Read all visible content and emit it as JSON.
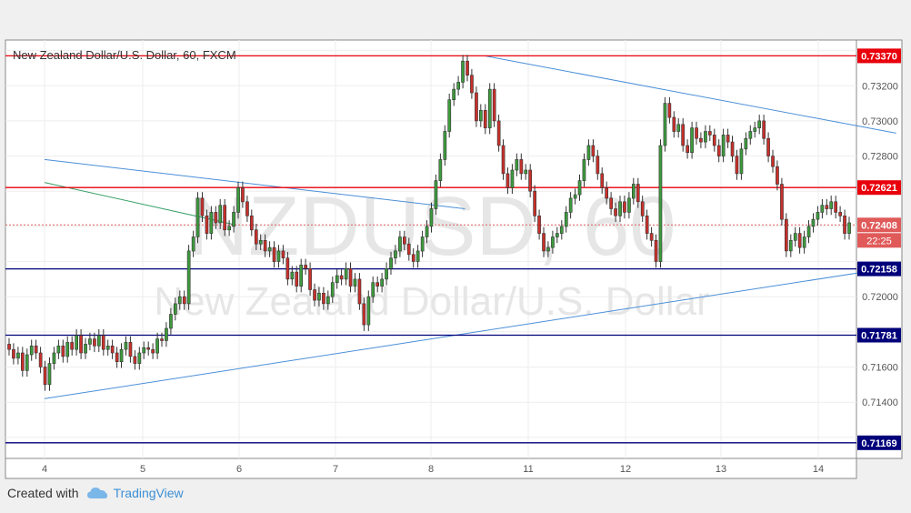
{
  "chart_data": {
    "type": "candlestick",
    "title": "New Zealand Dollar/U.S. Dollar, 60, FXCM",
    "watermark_symbol": "NZDUSD, 60",
    "watermark_name": "New Zealand Dollar/U.S. Dollar",
    "x_ticks": [
      "4",
      "5",
      "6",
      "7",
      "8",
      "11",
      "12",
      "13",
      "14"
    ],
    "y_ticks": [
      "0.73200",
      "0.73000",
      "0.72800",
      "0.72000",
      "0.71600",
      "0.71400"
    ],
    "ylim": [
      0.7108,
      0.7346
    ],
    "grid": true,
    "levels": [
      {
        "value": 0.7337,
        "label": "0.73370",
        "color": "#e8000b",
        "style": "solid"
      },
      {
        "value": 0.72621,
        "label": "0.72621",
        "color": "#e8000b",
        "style": "solid"
      },
      {
        "value": 0.72408,
        "label": "0.72408",
        "color": "#e05a5a",
        "style": "dotted"
      },
      {
        "value": 0.72158,
        "label": "0.72158",
        "color": "#00007a",
        "style": "solid"
      },
      {
        "value": 0.71781,
        "label": "0.71781",
        "color": "#00007a",
        "style": "solid"
      },
      {
        "value": 0.71169,
        "label": "0.71169",
        "color": "#00007a",
        "style": "solid"
      }
    ],
    "countdown": "22:25",
    "trendlines": [
      {
        "color": "#4a8fd8",
        "from": [
          0.0,
          0.7278
        ],
        "to": [
          4.35,
          0.725
        ]
      },
      {
        "color": "#3aa06a",
        "from": [
          0.0,
          0.7265
        ],
        "to": [
          1.95,
          0.7241
        ]
      },
      {
        "color": "#4a8fd8",
        "from": [
          0.0,
          0.7142
        ],
        "to": [
          8.7,
          0.7216
        ]
      },
      {
        "color": "#4a8fd8",
        "from": [
          4.55,
          0.7337
        ],
        "to": [
          8.8,
          0.7293
        ]
      }
    ],
    "closes": [
      0.717,
      0.7165,
      0.7168,
      0.7158,
      0.7167,
      0.7172,
      0.7168,
      0.716,
      0.715,
      0.7162,
      0.7168,
      0.7172,
      0.7166,
      0.7174,
      0.717,
      0.7178,
      0.7168,
      0.7173,
      0.7176,
      0.7172,
      0.7178,
      0.717,
      0.7172,
      0.7168,
      0.7163,
      0.717,
      0.7174,
      0.7166,
      0.7162,
      0.7168,
      0.7171,
      0.717,
      0.7168,
      0.7176,
      0.7175,
      0.7182,
      0.719,
      0.7196,
      0.72,
      0.7196,
      0.7226,
      0.7234,
      0.7256,
      0.7246,
      0.7236,
      0.7248,
      0.7242,
      0.7252,
      0.7238,
      0.724,
      0.7248,
      0.7262,
      0.7254,
      0.7246,
      0.7238,
      0.723,
      0.7232,
      0.7226,
      0.7228,
      0.722,
      0.7226,
      0.7222,
      0.721,
      0.7214,
      0.7206,
      0.7218,
      0.7216,
      0.7204,
      0.7198,
      0.7202,
      0.7196,
      0.72,
      0.7208,
      0.7212,
      0.721,
      0.7216,
      0.7206,
      0.721,
      0.7196,
      0.7184,
      0.72,
      0.7208,
      0.7206,
      0.721,
      0.7216,
      0.7222,
      0.7226,
      0.7234,
      0.723,
      0.7224,
      0.722,
      0.7226,
      0.7234,
      0.724,
      0.725,
      0.7266,
      0.7278,
      0.7294,
      0.7312,
      0.7318,
      0.7322,
      0.7334,
      0.7326,
      0.7316,
      0.73,
      0.7306,
      0.7296,
      0.7318,
      0.73,
      0.7286,
      0.727,
      0.7262,
      0.7272,
      0.7278,
      0.727,
      0.7272,
      0.726,
      0.7246,
      0.7236,
      0.7226,
      0.7228,
      0.7234,
      0.7236,
      0.724,
      0.7248,
      0.7256,
      0.7258,
      0.7266,
      0.7278,
      0.7286,
      0.728,
      0.727,
      0.7262,
      0.7256,
      0.725,
      0.7246,
      0.7254,
      0.7248,
      0.7256,
      0.7264,
      0.7254,
      0.7246,
      0.7236,
      0.7232,
      0.722,
      0.7286,
      0.731,
      0.7302,
      0.7294,
      0.7298,
      0.7286,
      0.7282,
      0.7296,
      0.729,
      0.7288,
      0.7294,
      0.7292,
      0.7286,
      0.728,
      0.7292,
      0.7288,
      0.728,
      0.727,
      0.7284,
      0.729,
      0.7294,
      0.7296,
      0.73,
      0.729,
      0.728,
      0.7274,
      0.7264,
      0.7244,
      0.7226,
      0.7232,
      0.7236,
      0.7228,
      0.7234,
      0.724,
      0.7244,
      0.7248,
      0.7252,
      0.725,
      0.7254,
      0.7248,
      0.7246,
      0.7236,
      0.7242
    ]
  },
  "footer": {
    "prefix": "Created with",
    "brand": "TradingView"
  }
}
